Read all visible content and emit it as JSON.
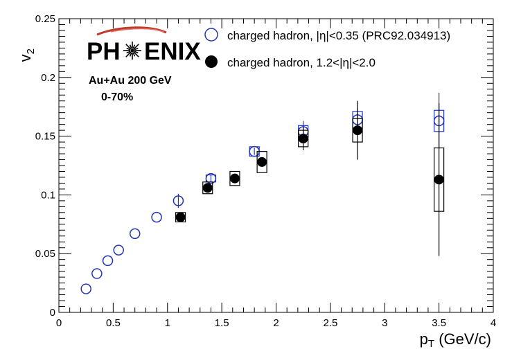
{
  "chart_data": {
    "type": "scatter",
    "xlabel_main": "p",
    "xlabel_sub": "T",
    "xlabel_unit": " (GeV/c)",
    "ylabel_main": "v",
    "ylabel_sub": "2",
    "xlim": [
      0,
      4
    ],
    "ylim": [
      0,
      0.25
    ],
    "x_ticks": [
      "0",
      "0.5",
      "1",
      "1.5",
      "2",
      "2.5",
      "3",
      "3.5",
      "4"
    ],
    "y_ticks": [
      "0",
      "0.05",
      "0.1",
      "0.15",
      "0.2",
      "0.25"
    ],
    "grid": false,
    "legend_placement": "top-right",
    "logo_text_1": "PH",
    "logo_text_2": "ENIX",
    "annotation_line1": "Au+Au 200 GeV",
    "annotation_line2": "0-70%",
    "series": [
      {
        "name": "charged hadron, |η|<0.35 (PRC92.034913)",
        "marker": "open-circle",
        "color": "#2233bb",
        "x": [
          0.25,
          0.35,
          0.45,
          0.55,
          0.7,
          0.9,
          1.1,
          1.4,
          1.8,
          2.25,
          2.75,
          3.5
        ],
        "y": [
          0.02,
          0.033,
          0.044,
          0.053,
          0.067,
          0.081,
          0.095,
          0.114,
          0.137,
          0.154,
          0.164,
          0.163
        ],
        "stat_err": [
          0.0,
          0.0,
          0.0,
          0.0,
          0.0,
          0.0,
          0.006,
          0.003,
          0.003,
          0.009,
          0.01,
          0.024
        ],
        "sys_err": [
          0.0,
          0.0,
          0.0,
          0.0,
          0.0,
          0.0,
          0.0,
          0.003,
          0.004,
          0.005,
          0.007,
          0.009
        ]
      },
      {
        "name": "charged hadron, 1.2<|η|<2.0",
        "marker": "filled-circle",
        "color": "#000000",
        "x": [
          1.12,
          1.37,
          1.62,
          1.87,
          2.25,
          2.75,
          3.5
        ],
        "y": [
          0.081,
          0.106,
          0.114,
          0.128,
          0.148,
          0.155,
          0.113
        ],
        "stat_err": [
          0.003,
          0.003,
          0.003,
          0.004,
          0.01,
          0.025,
          0.065
        ],
        "sys_err": [
          0.004,
          0.005,
          0.006,
          0.009,
          0.007,
          0.01,
          0.027
        ]
      }
    ]
  }
}
